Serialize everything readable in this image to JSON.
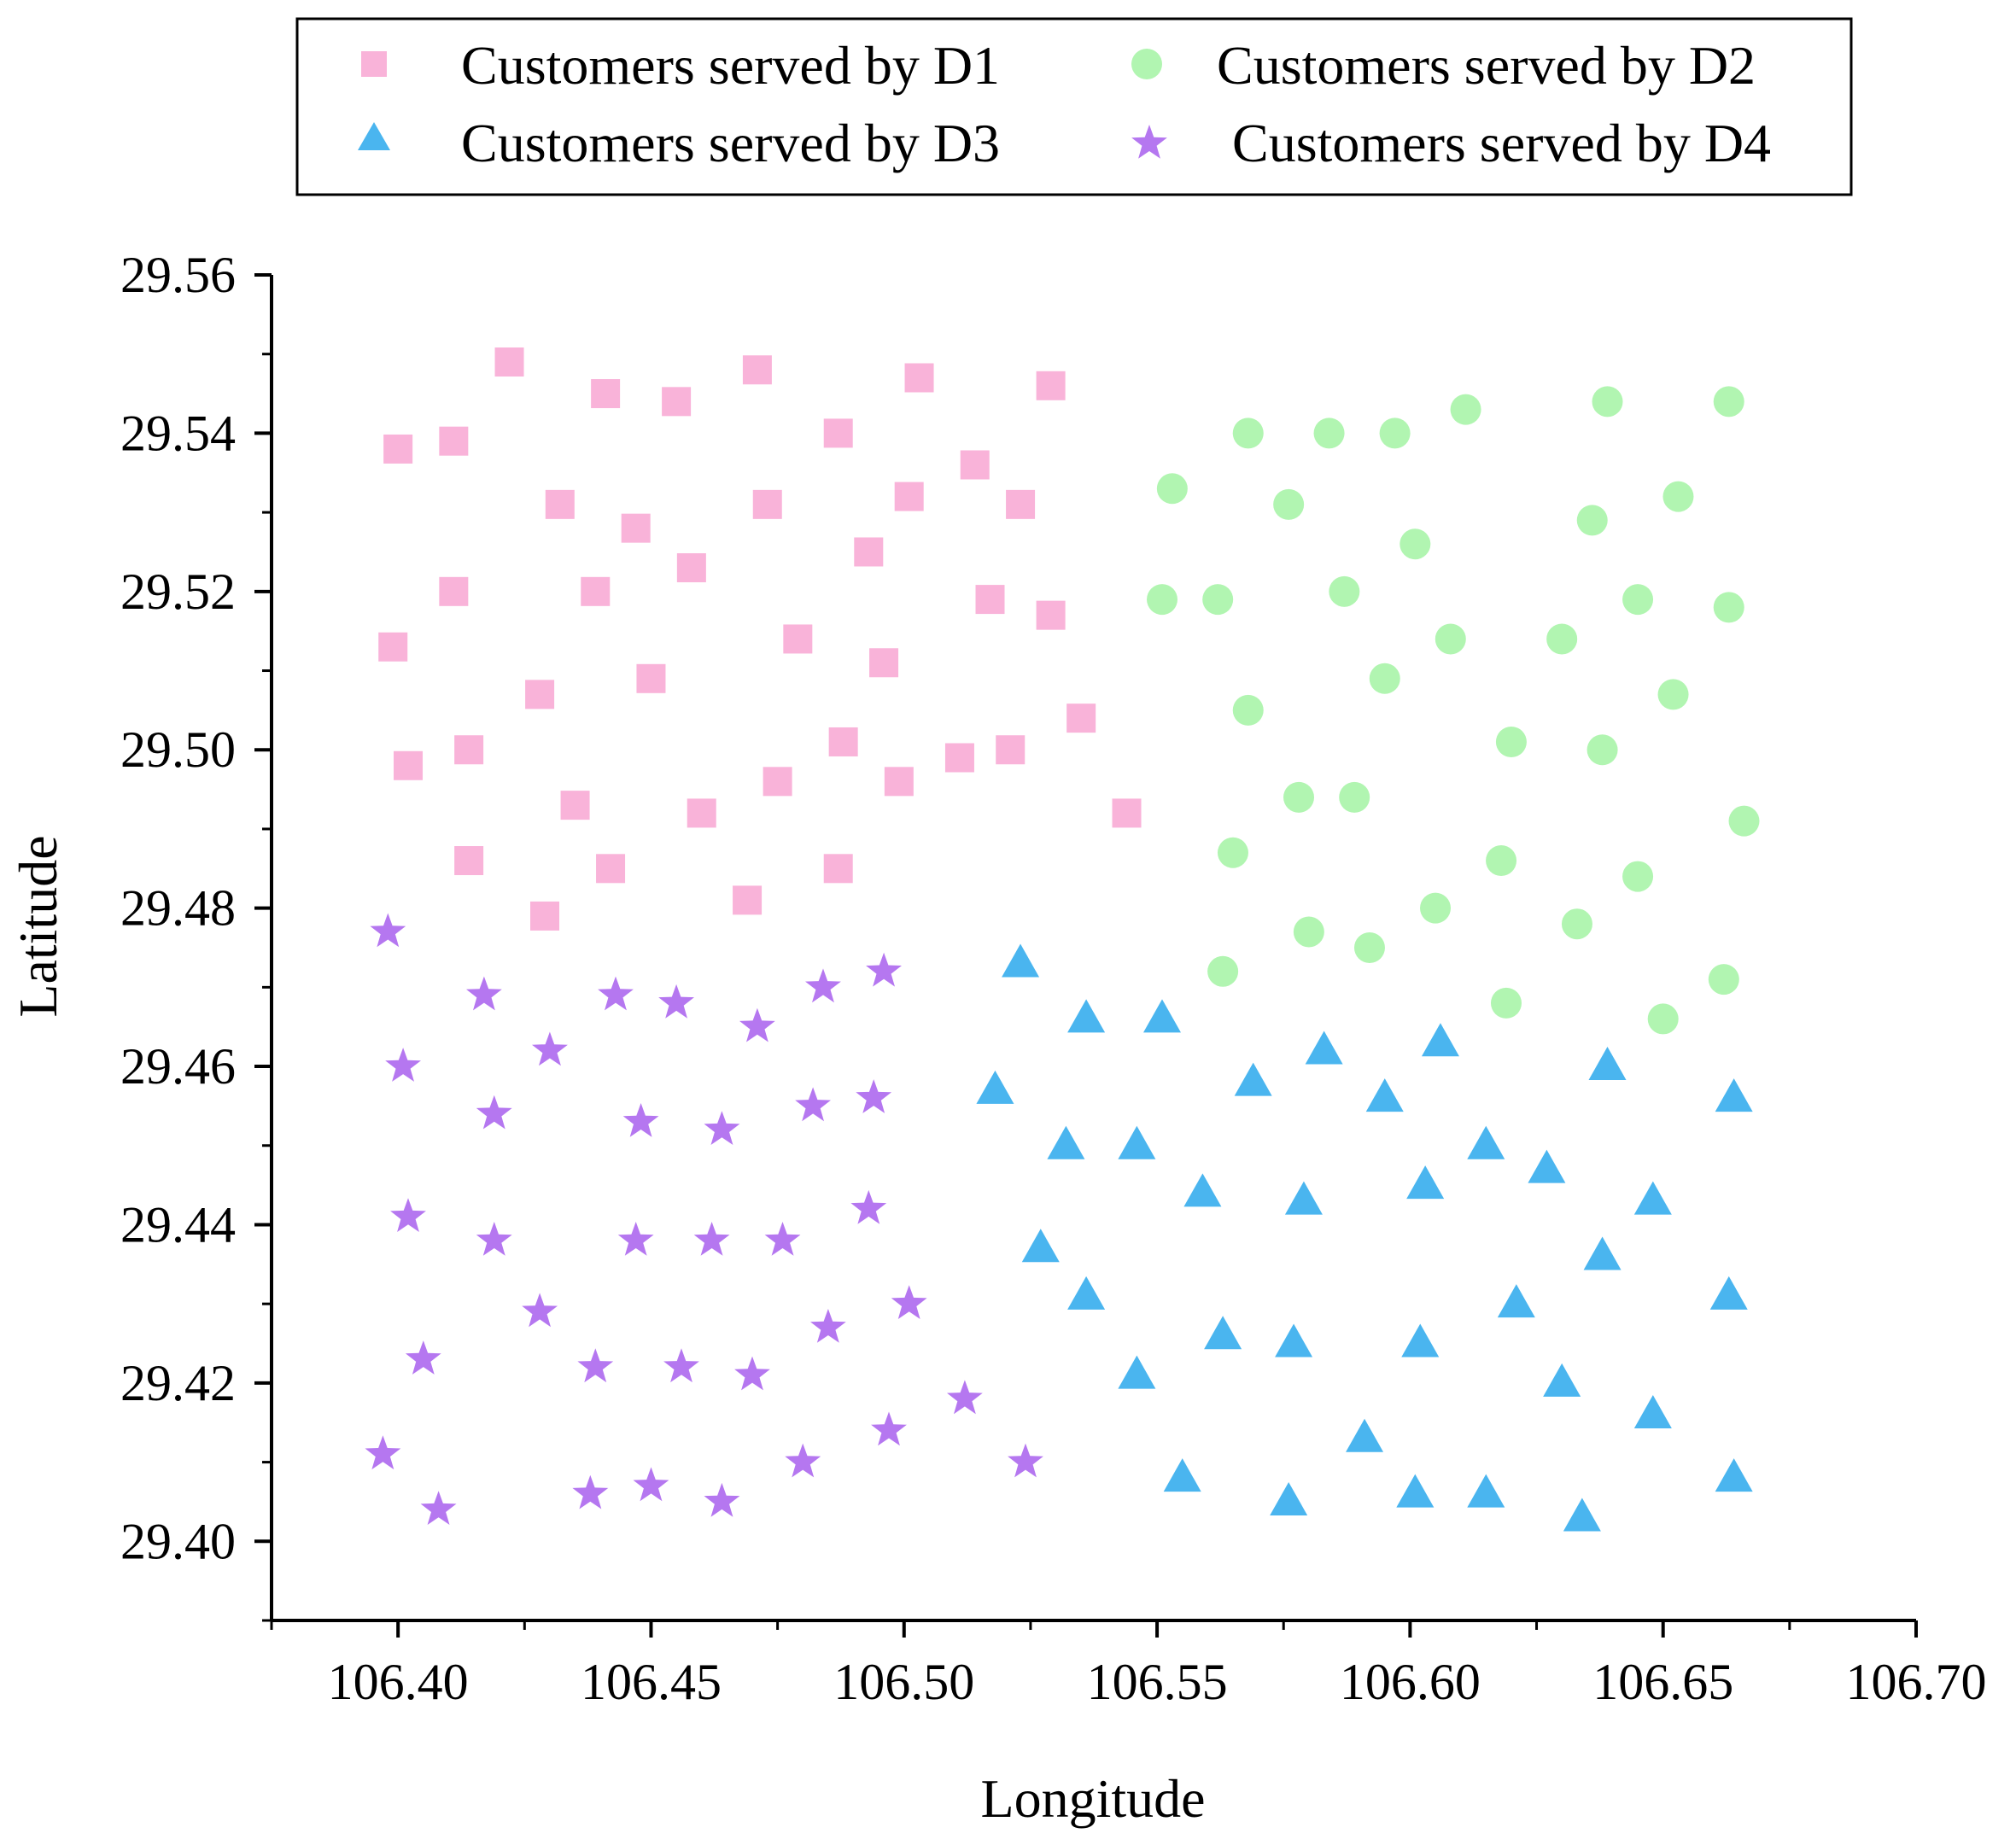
{
  "chart_data": {
    "type": "scatter",
    "title": "",
    "xlabel": "Longitude",
    "ylabel": "Latitude",
    "xlim": [
      106.375,
      106.7
    ],
    "ylim": [
      29.39,
      29.56
    ],
    "xticks": [
      "106.40",
      "106.45",
      "106.50",
      "106.55",
      "106.60",
      "106.65",
      "106.70"
    ],
    "xtick_values": [
      106.4,
      106.45,
      106.5,
      106.55,
      106.6,
      106.65,
      106.7
    ],
    "yticks": [
      "29.40",
      "29.42",
      "29.44",
      "29.46",
      "29.48",
      "29.50",
      "29.52",
      "29.54",
      "29.56"
    ],
    "ytick_values": [
      29.4,
      29.42,
      29.44,
      29.46,
      29.48,
      29.5,
      29.52,
      29.54,
      29.56
    ],
    "grid": false,
    "legend_position": "top",
    "series": [
      {
        "name": "Customers served by D1",
        "marker": "square",
        "color": "#f9b3d9",
        "points": [
          [
            106.422,
            29.549
          ],
          [
            106.471,
            29.548
          ],
          [
            106.503,
            29.547
          ],
          [
            106.529,
            29.546
          ],
          [
            106.441,
            29.545
          ],
          [
            106.455,
            29.544
          ],
          [
            106.487,
            29.54
          ],
          [
            106.411,
            29.539
          ],
          [
            106.4,
            29.538
          ],
          [
            106.514,
            29.536
          ],
          [
            106.501,
            29.532
          ],
          [
            106.432,
            29.531
          ],
          [
            106.473,
            29.531
          ],
          [
            106.523,
            29.531
          ],
          [
            106.447,
            29.528
          ],
          [
            106.493,
            29.525
          ],
          [
            106.458,
            29.523
          ],
          [
            106.411,
            29.52
          ],
          [
            106.439,
            29.52
          ],
          [
            106.517,
            29.519
          ],
          [
            106.529,
            29.517
          ],
          [
            106.479,
            29.514
          ],
          [
            106.399,
            29.513
          ],
          [
            106.496,
            29.511
          ],
          [
            106.45,
            29.509
          ],
          [
            106.428,
            29.507
          ],
          [
            106.535,
            29.504
          ],
          [
            106.488,
            29.501
          ],
          [
            106.521,
            29.5
          ],
          [
            106.414,
            29.5
          ],
          [
            106.511,
            29.499
          ],
          [
            106.402,
            29.498
          ],
          [
            106.499,
            29.496
          ],
          [
            106.475,
            29.496
          ],
          [
            106.435,
            29.493
          ],
          [
            106.544,
            29.492
          ],
          [
            106.46,
            29.492
          ],
          [
            106.414,
            29.486
          ],
          [
            106.442,
            29.485
          ],
          [
            106.487,
            29.485
          ],
          [
            106.469,
            29.481
          ],
          [
            106.429,
            29.479
          ]
        ]
      },
      {
        "name": "Customers served by D2",
        "marker": "circle",
        "color": "#b1f5b1",
        "points": [
          [
            106.639,
            29.544
          ],
          [
            106.663,
            29.544
          ],
          [
            106.611,
            29.543
          ],
          [
            106.568,
            29.54
          ],
          [
            106.584,
            29.54
          ],
          [
            106.597,
            29.54
          ],
          [
            106.553,
            29.533
          ],
          [
            106.653,
            29.532
          ],
          [
            106.576,
            29.531
          ],
          [
            106.636,
            29.529
          ],
          [
            106.601,
            29.526
          ],
          [
            106.587,
            29.52
          ],
          [
            106.551,
            29.519
          ],
          [
            106.562,
            29.519
          ],
          [
            106.645,
            29.519
          ],
          [
            106.663,
            29.518
          ],
          [
            106.608,
            29.514
          ],
          [
            106.63,
            29.514
          ],
          [
            106.595,
            29.509
          ],
          [
            106.652,
            29.507
          ],
          [
            106.568,
            29.505
          ],
          [
            106.62,
            29.501
          ],
          [
            106.638,
            29.5
          ],
          [
            106.578,
            29.494
          ],
          [
            106.589,
            29.494
          ],
          [
            106.666,
            29.491
          ],
          [
            106.565,
            29.487
          ],
          [
            106.618,
            29.486
          ],
          [
            106.645,
            29.484
          ],
          [
            106.605,
            29.48
          ],
          [
            106.58,
            29.477
          ],
          [
            106.633,
            29.478
          ],
          [
            106.592,
            29.475
          ],
          [
            106.563,
            29.472
          ],
          [
            106.662,
            29.471
          ],
          [
            106.619,
            29.468
          ],
          [
            106.65,
            29.466
          ]
        ]
      },
      {
        "name": "Customers served by D3",
        "marker": "triangle",
        "color": "#4ab5ef",
        "points": [
          [
            106.523,
            29.473
          ],
          [
            106.536,
            29.466
          ],
          [
            106.551,
            29.466
          ],
          [
            106.583,
            29.462
          ],
          [
            106.606,
            29.463
          ],
          [
            106.639,
            29.46
          ],
          [
            106.518,
            29.457
          ],
          [
            106.569,
            29.458
          ],
          [
            106.595,
            29.456
          ],
          [
            106.664,
            29.456
          ],
          [
            106.532,
            29.45
          ],
          [
            106.546,
            29.45
          ],
          [
            106.615,
            29.45
          ],
          [
            106.627,
            29.447
          ],
          [
            106.559,
            29.444
          ],
          [
            106.579,
            29.443
          ],
          [
            106.603,
            29.445
          ],
          [
            106.648,
            29.443
          ],
          [
            106.527,
            29.437
          ],
          [
            106.638,
            29.436
          ],
          [
            106.536,
            29.431
          ],
          [
            106.563,
            29.426
          ],
          [
            106.621,
            29.43
          ],
          [
            106.663,
            29.431
          ],
          [
            106.577,
            29.425
          ],
          [
            106.602,
            29.425
          ],
          [
            106.546,
            29.421
          ],
          [
            106.63,
            29.42
          ],
          [
            106.648,
            29.416
          ],
          [
            106.591,
            29.413
          ],
          [
            106.555,
            29.408
          ],
          [
            106.576,
            29.405
          ],
          [
            106.601,
            29.406
          ],
          [
            106.615,
            29.406
          ],
          [
            106.634,
            29.403
          ],
          [
            106.664,
            29.408
          ]
        ]
      },
      {
        "name": "Customers served by D4",
        "marker": "star",
        "color": "#b577f0",
        "points": [
          [
            106.398,
            29.477
          ],
          [
            106.496,
            29.472
          ],
          [
            106.417,
            29.469
          ],
          [
            106.443,
            29.469
          ],
          [
            106.484,
            29.47
          ],
          [
            106.455,
            29.468
          ],
          [
            106.471,
            29.465
          ],
          [
            106.43,
            29.462
          ],
          [
            106.401,
            29.46
          ],
          [
            106.494,
            29.456
          ],
          [
            106.482,
            29.455
          ],
          [
            106.419,
            29.454
          ],
          [
            106.448,
            29.453
          ],
          [
            106.464,
            29.452
          ],
          [
            106.493,
            29.442
          ],
          [
            106.402,
            29.441
          ],
          [
            106.419,
            29.438
          ],
          [
            106.447,
            29.438
          ],
          [
            106.462,
            29.438
          ],
          [
            106.476,
            29.438
          ],
          [
            106.428,
            29.429
          ],
          [
            106.501,
            29.43
          ],
          [
            106.485,
            29.427
          ],
          [
            106.405,
            29.423
          ],
          [
            106.439,
            29.422
          ],
          [
            106.456,
            29.422
          ],
          [
            106.47,
            29.421
          ],
          [
            106.512,
            29.418
          ],
          [
            106.397,
            29.411
          ],
          [
            106.497,
            29.414
          ],
          [
            106.48,
            29.41
          ],
          [
            106.524,
            29.41
          ],
          [
            106.438,
            29.406
          ],
          [
            106.45,
            29.407
          ],
          [
            106.464,
            29.405
          ],
          [
            106.408,
            29.404
          ]
        ]
      }
    ]
  }
}
